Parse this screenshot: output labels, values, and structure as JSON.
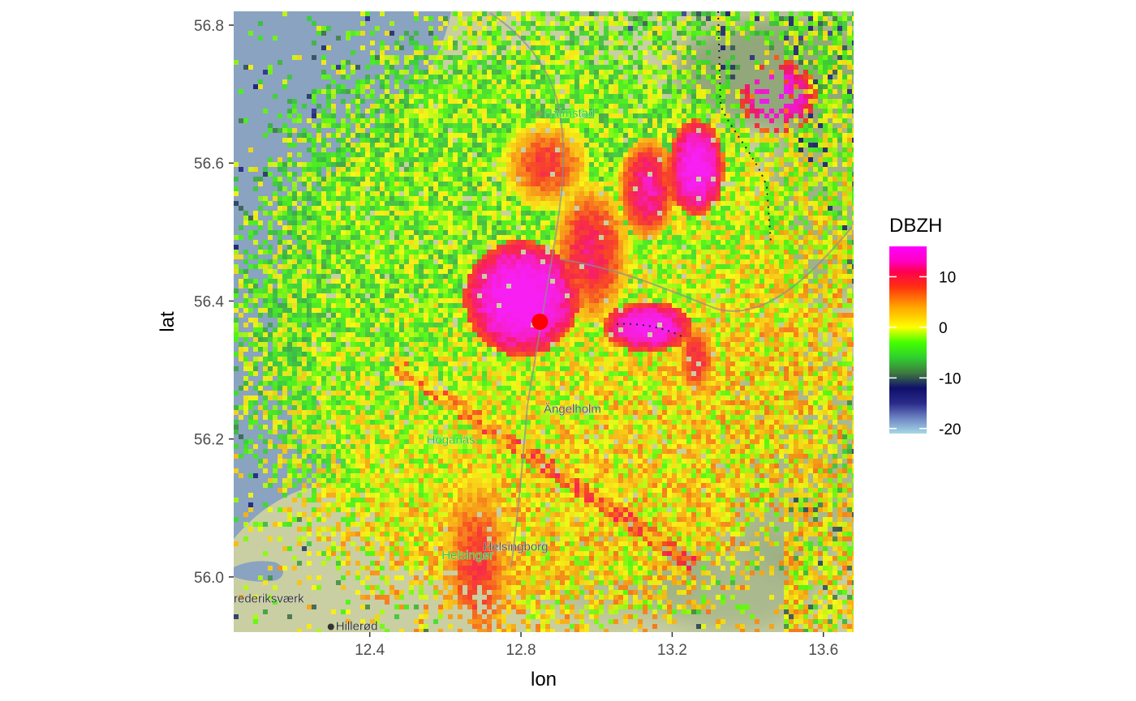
{
  "chart_data": {
    "type": "heatmap",
    "title": "",
    "xlabel": "lon",
    "ylabel": "lat",
    "xlim": [
      12.04,
      13.68
    ],
    "ylim": [
      55.92,
      56.82
    ],
    "x_ticks": [
      {
        "value": 12.4,
        "label": "12.4"
      },
      {
        "value": 12.8,
        "label": "12.8"
      },
      {
        "value": 13.2,
        "label": "13.2"
      },
      {
        "value": 13.6,
        "label": "13.6"
      }
    ],
    "y_ticks": [
      {
        "value": 56.0,
        "label": "56.0"
      },
      {
        "value": 56.2,
        "label": "56.2"
      },
      {
        "value": 56.4,
        "label": "56.4"
      },
      {
        "value": 56.6,
        "label": "56.6"
      },
      {
        "value": 56.8,
        "label": "56.8"
      }
    ],
    "radar_site": {
      "lon": 12.85,
      "lat": 56.37,
      "color": "#ff0000"
    },
    "legend": {
      "title": "DBZH",
      "placement": "right",
      "range": [
        -21,
        16
      ],
      "ticks": [
        {
          "value": 10,
          "label": "10"
        },
        {
          "value": 0,
          "label": "0"
        },
        {
          "value": -10,
          "label": "-10"
        },
        {
          "value": -20,
          "label": "-20"
        }
      ],
      "color_stops": [
        {
          "value": -21,
          "color": "#a6d9e6"
        },
        {
          "value": -18,
          "color": "#6f86c4"
        },
        {
          "value": -15,
          "color": "#2a2a8a"
        },
        {
          "value": -12,
          "color": "#10106a"
        },
        {
          "value": -9,
          "color": "#3f7a3f"
        },
        {
          "value": -6,
          "color": "#2fcf2f"
        },
        {
          "value": -3,
          "color": "#44ff00"
        },
        {
          "value": 0,
          "color": "#ffff00"
        },
        {
          "value": 4,
          "color": "#ffa500"
        },
        {
          "value": 8,
          "color": "#ff3010"
        },
        {
          "value": 11,
          "color": "#ff0050"
        },
        {
          "value": 13,
          "color": "#ff00c0"
        },
        {
          "value": 16,
          "color": "#ff00ff"
        }
      ]
    },
    "places": [
      {
        "name": "Halmstad",
        "lon": 12.86,
        "lat": 56.674,
        "color": "#22cc22"
      },
      {
        "name": "Ängelholm",
        "lon": 12.86,
        "lat": 56.245,
        "color": "#555555"
      },
      {
        "name": "Höganäs",
        "lon": 12.55,
        "lat": 56.2,
        "color": "#22cc22"
      },
      {
        "name": "Helsingborg",
        "lon": 12.7,
        "lat": 56.045,
        "color": "#555555"
      },
      {
        "name": "Helsingør",
        "lon": 12.59,
        "lat": 56.033,
        "color": "#22cc22"
      },
      {
        "name": "rederiksværk",
        "lon": 12.04,
        "lat": 55.97,
        "color": "#333333"
      },
      {
        "name": "Hillerød",
        "lon": 12.31,
        "lat": 55.93,
        "color": "#333333"
      }
    ]
  },
  "colors": {
    "sea": "#8aa3c1",
    "land": "#c9cfa2",
    "land_dark": "#7f9a6d"
  }
}
